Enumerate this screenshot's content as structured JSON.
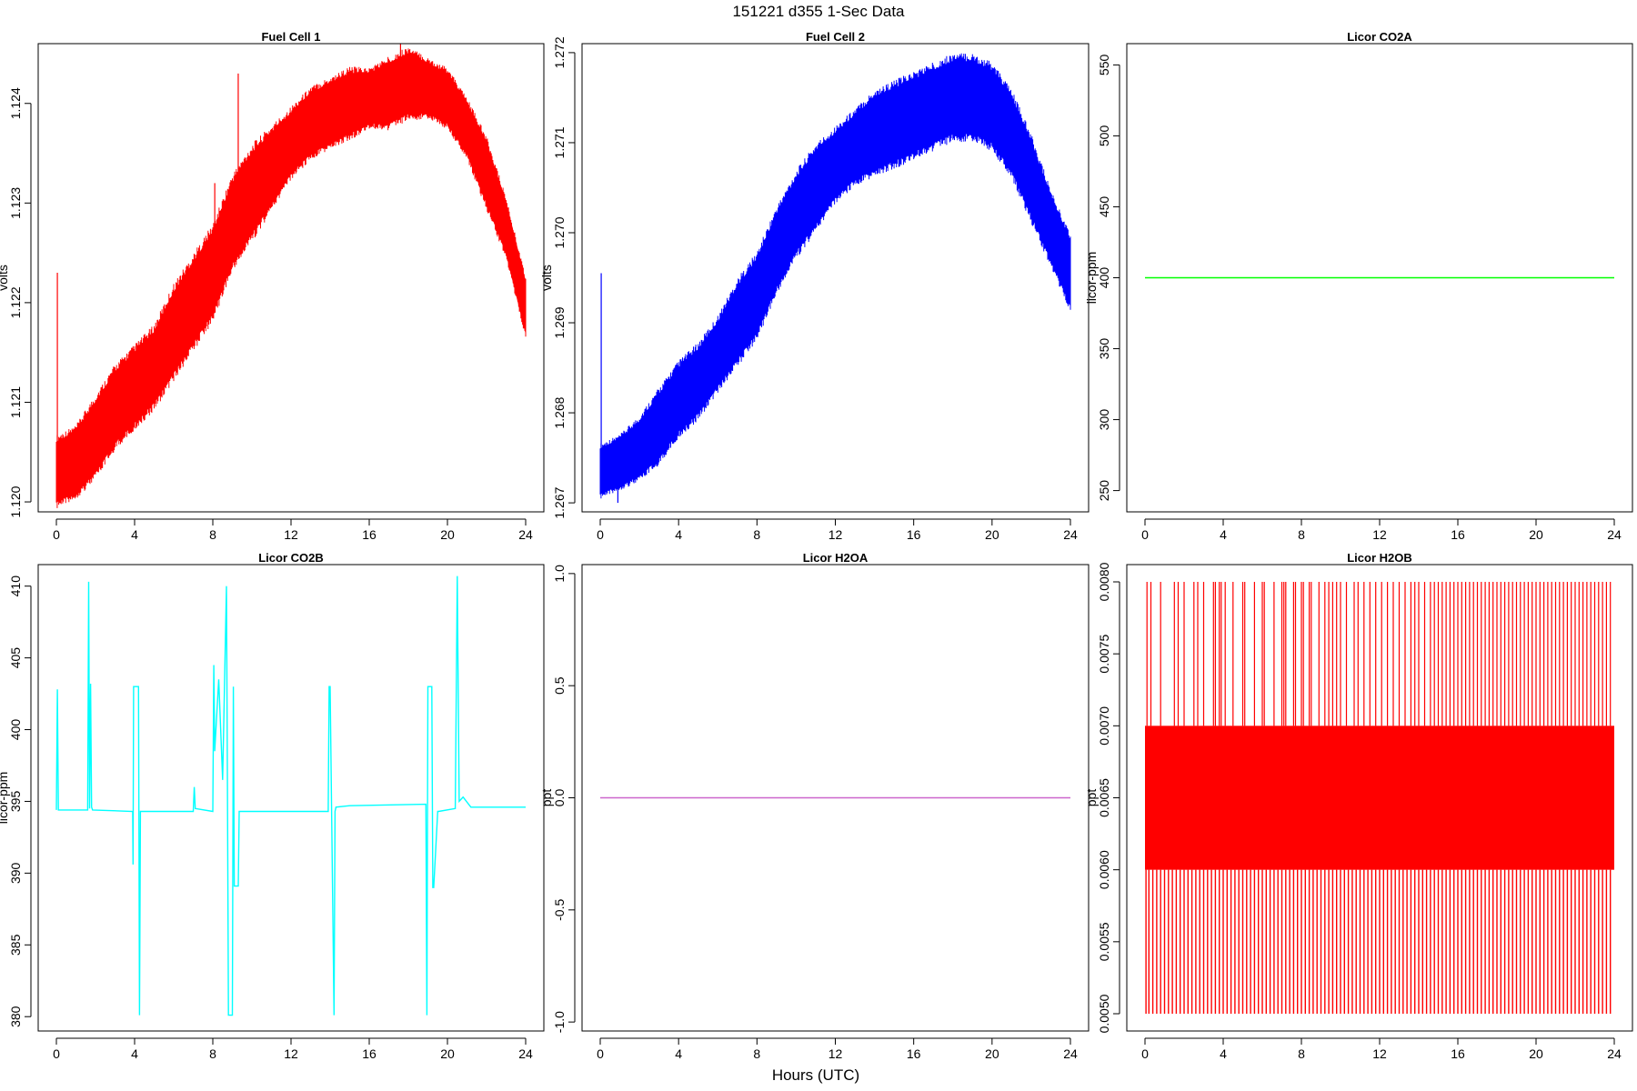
{
  "figure": {
    "title": "151221   d355   1-Sec Data",
    "xlabel": "Hours (UTC)"
  },
  "chart_data": [
    {
      "type": "line",
      "title": "Fuel Cell 1",
      "ylabel": "volts",
      "xlabel": "",
      "color": "#ff0000",
      "xlim": [
        0,
        24
      ],
      "ylim": [
        1.1199,
        1.1246
      ],
      "xticks": [
        0,
        4,
        8,
        12,
        16,
        20,
        24
      ],
      "yticks": [
        1.12,
        1.121,
        1.122,
        1.123,
        1.124
      ],
      "ytick_labels": [
        "1.120",
        "1.121",
        "1.122",
        "1.123",
        "1.124"
      ],
      "band": {
        "x": [
          0,
          1,
          2,
          3,
          4,
          5,
          6,
          7,
          8,
          9,
          10,
          11,
          12,
          13,
          14,
          15,
          16,
          17,
          18,
          19,
          20,
          21,
          22,
          23,
          24
        ],
        "lower": [
          1.12,
          1.1201,
          1.1203,
          1.1206,
          1.1208,
          1.121,
          1.1213,
          1.1216,
          1.1219,
          1.1224,
          1.1227,
          1.123,
          1.1233,
          1.1235,
          1.1236,
          1.1237,
          1.1238,
          1.1238,
          1.1239,
          1.1239,
          1.1238,
          1.1235,
          1.123,
          1.1225,
          1.1217
        ],
        "upper": [
          1.1206,
          1.1207,
          1.121,
          1.1213,
          1.1215,
          1.1217,
          1.1221,
          1.1224,
          1.1227,
          1.1232,
          1.1235,
          1.1237,
          1.1239,
          1.1241,
          1.1242,
          1.1243,
          1.1243,
          1.1244,
          1.1245,
          1.1244,
          1.1243,
          1.124,
          1.1236,
          1.123,
          1.1222
        ]
      },
      "spikes": [
        {
          "x": 0.05,
          "y": 1.1223
        },
        {
          "x": 8.1,
          "y": 1.1232
        },
        {
          "x": 9.3,
          "y": 1.1243
        },
        {
          "x": 17.6,
          "y": 1.1246
        }
      ]
    },
    {
      "type": "line",
      "title": "Fuel Cell 2",
      "ylabel": "volts",
      "xlabel": "",
      "color": "#0000ff",
      "xlim": [
        0,
        24
      ],
      "ylim": [
        1.2669,
        1.2721
      ],
      "xticks": [
        0,
        4,
        8,
        12,
        16,
        20,
        24
      ],
      "yticks": [
        1.267,
        1.268,
        1.269,
        1.27,
        1.271,
        1.272
      ],
      "ytick_labels": [
        "1.267",
        "1.268",
        "1.269",
        "1.270",
        "1.271",
        "1.272"
      ],
      "band": {
        "x": [
          0,
          1,
          2,
          3,
          4,
          5,
          6,
          7,
          8,
          9,
          10,
          11,
          12,
          13,
          14,
          15,
          16,
          17,
          18,
          19,
          20,
          21,
          22,
          23,
          24
        ],
        "lower": [
          1.2671,
          1.2672,
          1.2673,
          1.2675,
          1.2678,
          1.268,
          1.2683,
          1.2686,
          1.2689,
          1.2694,
          1.2698,
          1.2701,
          1.2704,
          1.2706,
          1.2707,
          1.2708,
          1.2709,
          1.271,
          1.2711,
          1.2711,
          1.271,
          1.2707,
          1.2702,
          1.2697,
          1.2692
        ],
        "upper": [
          1.2676,
          1.2677,
          1.2679,
          1.2682,
          1.2685,
          1.2687,
          1.269,
          1.2694,
          1.2697,
          1.2702,
          1.2706,
          1.2709,
          1.2711,
          1.2713,
          1.2715,
          1.2716,
          1.2717,
          1.2718,
          1.2719,
          1.2719,
          1.2718,
          1.2715,
          1.271,
          1.2704,
          1.2699
        ]
      },
      "spikes": [
        {
          "x": 0.05,
          "y": 1.26955
        },
        {
          "x": 0.9,
          "y": 1.267
        }
      ]
    },
    {
      "type": "line",
      "title": "Licor CO2A",
      "ylabel": "licor-ppm",
      "xlabel": "",
      "color": "#00ff00",
      "xlim": [
        0,
        24
      ],
      "ylim": [
        235,
        565
      ],
      "xticks": [
        0,
        4,
        8,
        12,
        16,
        20,
        24
      ],
      "yticks": [
        250,
        300,
        350,
        400,
        450,
        500,
        550
      ],
      "ytick_labels": [
        "250",
        "300",
        "350",
        "400",
        "450",
        "500",
        "550"
      ],
      "x": [
        0,
        24
      ],
      "y": [
        400,
        400
      ]
    },
    {
      "type": "line",
      "title": "Licor CO2B",
      "ylabel": "licor-ppm",
      "xlabel": "",
      "color": "#00ffff",
      "xlim": [
        0,
        24
      ],
      "ylim": [
        379,
        411.5
      ],
      "xticks": [
        0,
        4,
        8,
        12,
        16,
        20,
        24
      ],
      "yticks": [
        380,
        385,
        390,
        395,
        400,
        405,
        410
      ],
      "ytick_labels": [
        "380",
        "385",
        "390",
        "395",
        "400",
        "405",
        "410"
      ],
      "x": [
        0,
        0.05,
        0.1,
        1.6,
        1.65,
        1.7,
        1.75,
        1.8,
        1.85,
        3.9,
        3.92,
        3.95,
        4.0,
        4.2,
        4.25,
        4.3,
        7.0,
        7.05,
        7.1,
        8.0,
        8.05,
        8.1,
        8.3,
        8.5,
        8.7,
        8.75,
        8.8,
        9.0,
        9.05,
        9.1,
        9.3,
        9.35,
        9.4,
        13.9,
        13.95,
        14.0,
        14.2,
        14.25,
        14.3,
        15.0,
        18.9,
        18.95,
        19.0,
        19.2,
        19.25,
        19.3,
        19.5,
        19.55,
        20.4,
        20.5,
        20.6,
        20.8,
        21.2,
        24.0
      ],
      "y": [
        394.4,
        402.8,
        394.4,
        394.4,
        410.3,
        394.5,
        403.2,
        394.6,
        394.4,
        394.3,
        390.6,
        403.0,
        403.0,
        403.0,
        380.1,
        394.3,
        394.3,
        396.0,
        394.5,
        394.3,
        404.5,
        398.5,
        403.5,
        396.5,
        410.0,
        396.0,
        380.1,
        380.1,
        403.0,
        389.1,
        389.1,
        394.3,
        394.3,
        394.3,
        403.0,
        403.0,
        380.1,
        394.3,
        394.6,
        394.7,
        394.8,
        380.1,
        403.0,
        403.0,
        389.0,
        389.0,
        394.3,
        394.3,
        394.5,
        410.7,
        395.0,
        395.3,
        394.6,
        394.6
      ]
    },
    {
      "type": "line",
      "title": "Licor H2OA",
      "ylabel": "ppt",
      "xlabel": "",
      "color": "#cc66cc",
      "xlim": [
        0,
        24
      ],
      "ylim": [
        -1.04,
        1.04
      ],
      "xticks": [
        0,
        4,
        8,
        12,
        16,
        20,
        24
      ],
      "yticks": [
        -1.0,
        -0.5,
        0.0,
        0.5,
        1.0
      ],
      "ytick_labels": [
        "-1.0",
        "-0.5",
        "0.0",
        "0.5",
        "1.0"
      ],
      "x": [
        0,
        24
      ],
      "y": [
        0,
        0
      ]
    },
    {
      "type": "line",
      "title": "Licor H2OB",
      "ylabel": "ppt",
      "xlabel": "",
      "color": "#ff0000",
      "xlim": [
        0,
        24
      ],
      "ylim": [
        0.00488,
        0.00812
      ],
      "xticks": [
        0,
        4,
        8,
        12,
        16,
        20,
        24
      ],
      "yticks": [
        0.005,
        0.0055,
        0.006,
        0.0065,
        0.007,
        0.0075,
        0.008
      ],
      "ytick_labels": [
        "0.0050",
        "0.0055",
        "0.0060",
        "0.0065",
        "0.0070",
        "0.0075",
        "0.0080"
      ],
      "levels": [
        0.005,
        0.006,
        0.007,
        0.008
      ],
      "band": {
        "x": [
          0,
          24
        ],
        "lower": 0.006,
        "upper": 0.007
      },
      "high_spikes_x": [
        0.1,
        0.3,
        0.8,
        1.5,
        1.7,
        2.0,
        2.5,
        2.7,
        3.0,
        3.5,
        3.6,
        3.8,
        3.9,
        4.1,
        4.5,
        5.0,
        5.1,
        5.6,
        6.0,
        6.1,
        6.6,
        7.0,
        7.1,
        7.2,
        7.6,
        7.7,
        8.0,
        8.1,
        8.4,
        8.5,
        8.9,
        9.2,
        9.4,
        9.6,
        9.8,
        10.0,
        10.3,
        10.7,
        10.9,
        11.2,
        11.5,
        11.8,
        12.1,
        12.4,
        12.7,
        13.0,
        13.3,
        13.6,
        13.8,
        14.0,
        14.3,
        14.6,
        14.8,
        15.0,
        15.2,
        15.4,
        15.6,
        15.8,
        16.0,
        16.2,
        16.4,
        16.6,
        16.8,
        17.0,
        17.2,
        17.4,
        17.6,
        17.8,
        18.0,
        18.2,
        18.4,
        18.6,
        18.8,
        19.0,
        19.2,
        19.4,
        19.6,
        19.8,
        20.0,
        20.2,
        20.4,
        20.6,
        20.8,
        21.0,
        21.2,
        21.4,
        21.6,
        21.8,
        22.0,
        22.2,
        22.4,
        22.6,
        22.8,
        23.0,
        23.2,
        23.4,
        23.6,
        23.8
      ],
      "low_spikes_x": [
        0.05,
        0.2,
        0.4,
        0.6,
        0.8,
        1.0,
        1.2,
        1.4,
        1.6,
        1.8,
        2.0,
        2.2,
        2.4,
        2.6,
        2.8,
        3.0,
        3.2,
        3.4,
        3.6,
        3.8,
        4.0,
        4.2,
        4.4,
        4.6,
        4.8,
        5.0,
        5.2,
        5.4,
        5.6,
        5.8,
        6.0,
        6.2,
        6.4,
        6.6,
        6.8,
        7.0,
        7.2,
        7.4,
        7.6,
        7.8,
        8.0,
        8.2,
        8.4,
        8.6,
        8.8,
        9.0,
        9.2,
        9.4,
        9.6,
        9.8,
        10.0,
        10.2,
        10.4,
        10.6,
        10.8,
        11.0,
        11.2,
        11.4,
        11.6,
        11.8,
        12.0,
        12.2,
        12.4,
        12.6,
        12.8,
        13.0,
        13.2,
        13.4,
        13.6,
        13.8,
        14.0,
        14.2,
        14.4,
        14.6,
        14.8,
        15.0,
        15.2,
        15.4,
        15.6,
        15.8,
        16.0,
        16.2,
        16.4,
        16.6,
        16.8,
        17.0,
        17.2,
        17.4,
        17.6,
        17.8,
        18.0,
        18.2,
        18.4,
        18.6,
        18.8,
        19.0,
        19.2,
        19.4,
        19.6,
        19.8,
        20.0,
        20.2,
        20.4,
        20.6,
        20.8,
        21.0,
        21.2,
        21.4,
        21.6,
        21.8,
        22.0,
        22.2,
        22.4,
        22.6,
        22.8,
        23.0,
        23.2,
        23.4,
        23.6,
        23.8
      ]
    }
  ]
}
